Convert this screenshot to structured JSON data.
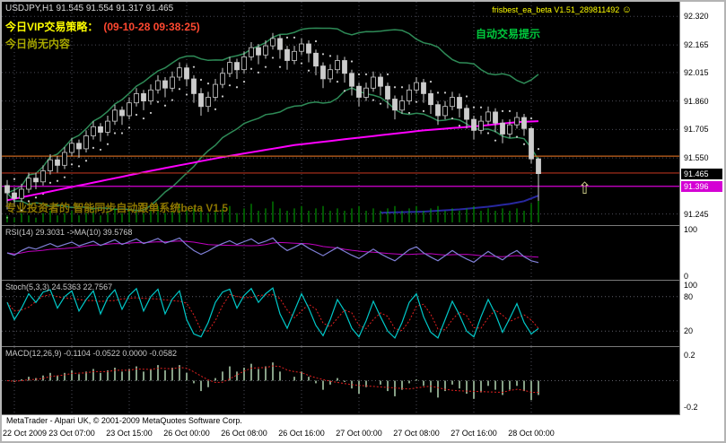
{
  "header": {
    "quote_line": "USDJPY,H1 91.545 91.554 91.317 91.465",
    "ea_label": "frisbest_ea_beta V1.51_289811492",
    "smiley": "☺",
    "vip_label": "今日VIP交易策略：",
    "vip_time": "(09-10-28 09:38:25)",
    "vip_content": "今日尚无内容",
    "auto_trade_hint": "自动交易提示",
    "watermark": "专业投资者的 智能同步自动跟单系统beta V1.5",
    "arrow": "⇧"
  },
  "footer": "MetaTrader - Alpari UK, © 2001-2009 MetaQuotes Software Corp.",
  "colors": {
    "background": "#000000",
    "grid": "#4b4b57",
    "candle_outline": "#cccccc",
    "bollinger": "#2e8b57",
    "magenta_ma": "#ff00ff",
    "blue_line": "#2828a0",
    "volume": "#00b000",
    "rsi_line": "#8080d8",
    "rsi_ma": "#c000c0",
    "stoch_k": "#00c8c8",
    "stoch_d": "#e02020",
    "macd_hist": "#86a086",
    "macd_signal": "#e02020",
    "orange_line": "#c8641e",
    "red_line": "#b4321e",
    "magenta_tag": "#d400d4"
  },
  "chart_data": {
    "type": "candlestick",
    "symbol": "USDJPY",
    "timeframe": "H1",
    "quote": {
      "open": "91.545",
      "high": "91.554",
      "low": "91.317",
      "close": "91.465"
    },
    "y_axis": [
      92.32,
      92.165,
      92.015,
      91.86,
      91.705,
      91.55,
      91.245
    ],
    "price_tags": [
      {
        "label": "91.465",
        "price": 91.465,
        "bg": "#000000",
        "fg": "#ffffff",
        "name": "current-price-tag"
      },
      {
        "label": "91.396",
        "price": 91.396,
        "bg": "#d400d4",
        "fg": "#ffffff",
        "name": "signal-price-tag"
      }
    ],
    "hlines": [
      {
        "price": 91.56,
        "color": "#c8641e"
      },
      {
        "price": 91.468,
        "color": "#b4321e"
      },
      {
        "price": 91.396,
        "color": "#d400d4"
      }
    ],
    "time_ticks": [
      {
        "idx": 1,
        "label": "22 Oct 2009"
      },
      {
        "idx": 9,
        "label": "23 Oct 07:00"
      },
      {
        "idx": 17,
        "label": "23 Oct 15:00"
      },
      {
        "idx": 25,
        "label": "26 Oct 00:00"
      },
      {
        "idx": 33,
        "label": "26 Oct 08:00"
      },
      {
        "idx": 41,
        "label": "26 Oct 16:00"
      },
      {
        "idx": 49,
        "label": "27 Oct 00:00"
      },
      {
        "idx": 57,
        "label": "27 Oct 08:00"
      },
      {
        "idx": 65,
        "label": "27 Oct 16:00"
      },
      {
        "idx": 73,
        "label": "28 Oct 00:00"
      }
    ],
    "candles": [
      [
        91.4,
        91.43,
        91.27,
        91.36
      ],
      [
        91.36,
        91.39,
        91.29,
        91.33
      ],
      [
        91.33,
        91.41,
        91.31,
        91.38
      ],
      [
        91.38,
        91.47,
        91.36,
        91.44
      ],
      [
        91.44,
        91.47,
        91.38,
        91.42
      ],
      [
        91.42,
        91.51,
        91.4,
        91.48
      ],
      [
        91.48,
        91.57,
        91.46,
        91.54
      ],
      [
        91.54,
        91.56,
        91.47,
        91.51
      ],
      [
        91.51,
        91.61,
        91.49,
        91.58
      ],
      [
        91.58,
        91.66,
        91.56,
        91.63
      ],
      [
        91.63,
        91.65,
        91.55,
        91.6
      ],
      [
        91.6,
        91.7,
        91.58,
        91.67
      ],
      [
        91.67,
        91.75,
        91.65,
        91.72
      ],
      [
        91.72,
        91.74,
        91.64,
        91.69
      ],
      [
        91.69,
        91.78,
        91.67,
        91.75
      ],
      [
        91.75,
        91.84,
        91.73,
        91.81
      ],
      [
        91.81,
        91.83,
        91.73,
        91.78
      ],
      [
        91.78,
        91.88,
        91.76,
        91.85
      ],
      [
        91.85,
        91.93,
        91.83,
        91.9
      ],
      [
        91.9,
        91.92,
        91.81,
        91.86
      ],
      [
        91.86,
        91.95,
        91.84,
        91.92
      ],
      [
        91.92,
        92.0,
        91.9,
        91.97
      ],
      [
        91.97,
        91.99,
        91.88,
        91.93
      ],
      [
        91.93,
        92.02,
        91.91,
        91.99
      ],
      [
        91.99,
        92.07,
        91.97,
        92.04
      ],
      [
        92.04,
        92.06,
        91.94,
        91.98
      ],
      [
        91.98,
        92.0,
        91.85,
        91.9
      ],
      [
        91.9,
        91.93,
        91.78,
        91.83
      ],
      [
        91.83,
        91.91,
        91.8,
        91.88
      ],
      [
        91.88,
        91.98,
        91.86,
        91.95
      ],
      [
        91.95,
        92.04,
        91.93,
        92.01
      ],
      [
        92.01,
        92.1,
        91.99,
        92.07
      ],
      [
        92.07,
        92.09,
        91.98,
        92.03
      ],
      [
        92.03,
        92.13,
        92.01,
        92.1
      ],
      [
        92.1,
        92.18,
        92.08,
        92.15
      ],
      [
        92.15,
        92.17,
        92.06,
        92.11
      ],
      [
        92.11,
        92.19,
        92.09,
        92.16
      ],
      [
        92.16,
        92.23,
        92.14,
        92.2
      ],
      [
        92.2,
        92.22,
        92.09,
        92.14
      ],
      [
        92.14,
        92.16,
        92.03,
        92.08
      ],
      [
        92.08,
        92.16,
        92.06,
        92.13
      ],
      [
        92.13,
        92.2,
        92.11,
        92.17
      ],
      [
        92.17,
        92.19,
        92.07,
        92.12
      ],
      [
        92.12,
        92.14,
        92.0,
        92.05
      ],
      [
        92.05,
        92.07,
        91.93,
        91.98
      ],
      [
        91.98,
        92.06,
        91.96,
        92.03
      ],
      [
        92.03,
        92.11,
        92.01,
        92.08
      ],
      [
        92.08,
        92.1,
        91.96,
        92.01
      ],
      [
        92.01,
        92.03,
        91.89,
        91.94
      ],
      [
        91.94,
        91.96,
        91.83,
        91.88
      ],
      [
        91.88,
        91.96,
        91.86,
        91.93
      ],
      [
        91.93,
        92.02,
        91.91,
        91.99
      ],
      [
        91.99,
        92.01,
        91.89,
        91.94
      ],
      [
        91.94,
        91.96,
        91.82,
        91.87
      ],
      [
        91.87,
        91.89,
        91.76,
        91.81
      ],
      [
        91.81,
        91.89,
        91.79,
        91.86
      ],
      [
        91.86,
        91.95,
        91.84,
        91.92
      ],
      [
        91.92,
        91.99,
        91.9,
        91.96
      ],
      [
        91.96,
        91.98,
        91.85,
        91.9
      ],
      [
        91.9,
        91.92,
        91.79,
        91.84
      ],
      [
        91.84,
        91.86,
        91.73,
        91.78
      ],
      [
        91.78,
        91.86,
        91.76,
        91.83
      ],
      [
        91.83,
        91.91,
        91.81,
        91.88
      ],
      [
        91.88,
        91.9,
        91.77,
        91.82
      ],
      [
        91.82,
        91.84,
        91.71,
        91.76
      ],
      [
        91.76,
        91.78,
        91.65,
        91.7
      ],
      [
        91.7,
        91.78,
        91.68,
        91.75
      ],
      [
        91.75,
        91.83,
        91.73,
        91.8
      ],
      [
        91.8,
        91.82,
        91.69,
        91.74
      ],
      [
        91.74,
        91.76,
        91.63,
        91.68
      ],
      [
        91.68,
        91.76,
        91.66,
        91.73
      ],
      [
        91.73,
        91.8,
        91.71,
        91.77
      ],
      [
        91.77,
        91.79,
        91.67,
        91.71
      ],
      [
        91.71,
        91.72,
        91.52,
        91.545
      ],
      [
        91.545,
        91.554,
        91.317,
        91.465
      ]
    ],
    "volumes": [
      3,
      2,
      4,
      3,
      2,
      4,
      5,
      3,
      4,
      5,
      3,
      4,
      6,
      3,
      5,
      6,
      4,
      5,
      7,
      4,
      5,
      7,
      4,
      5,
      8,
      5,
      6,
      7,
      4,
      5,
      6,
      7,
      4,
      6,
      8,
      5,
      6,
      9,
      6,
      5,
      6,
      7,
      5,
      6,
      7,
      5,
      6,
      5,
      6,
      7,
      5,
      6,
      5,
      6,
      7,
      5,
      6,
      7,
      5,
      6,
      7,
      5,
      6,
      5,
      6,
      7,
      5,
      6,
      5,
      6,
      5,
      6,
      5,
      8,
      10
    ],
    "overlays": {
      "magenta_ma": [
        [
          0,
          91.32
        ],
        [
          10,
          91.4
        ],
        [
          20,
          91.48
        ],
        [
          30,
          91.555
        ],
        [
          40,
          91.62
        ],
        [
          50,
          91.665
        ],
        [
          58,
          91.7
        ],
        [
          66,
          91.725
        ],
        [
          71,
          91.745
        ],
        [
          74,
          91.75
        ]
      ],
      "blue_line": [
        [
          52,
          91.252
        ],
        [
          58,
          91.258
        ],
        [
          63,
          91.27
        ],
        [
          67,
          91.285
        ],
        [
          70,
          91.3
        ],
        [
          72,
          91.315
        ],
        [
          74,
          91.345
        ]
      ]
    },
    "rsi": {
      "label": "RSI(14) 29.3031 ->MA(10) 39.5768",
      "axis": [
        {
          "v": 100,
          "label": "100"
        },
        {
          "v": 0,
          "label": "0"
        }
      ],
      "values": [
        50,
        45,
        55,
        62,
        58,
        64,
        70,
        63,
        68,
        73,
        65,
        70,
        75,
        66,
        72,
        78,
        68,
        74,
        80,
        70,
        75,
        81,
        71,
        76,
        82,
        67,
        55,
        47,
        54,
        63,
        70,
        76,
        68,
        74,
        80,
        70,
        75,
        82,
        66,
        55,
        62,
        70,
        60,
        52,
        44,
        53,
        62,
        53,
        45,
        38,
        48,
        58,
        48,
        40,
        33,
        45,
        57,
        63,
        50,
        41,
        33,
        44,
        55,
        45,
        37,
        30,
        42,
        53,
        43,
        35,
        47,
        55,
        42,
        33,
        29.3
      ]
    },
    "stoch": {
      "label": "Stoch(5,3,3) 24.5363 22.7567",
      "axis": [
        {
          "v": 100,
          "label": "100"
        },
        {
          "v": 80,
          "label": "80"
        },
        {
          "v": 20,
          "label": "20"
        }
      ],
      "levels": [
        80,
        20
      ],
      "k": [
        70,
        40,
        60,
        85,
        70,
        88,
        92,
        60,
        80,
        90,
        55,
        75,
        90,
        50,
        78,
        92,
        58,
        82,
        94,
        55,
        80,
        93,
        50,
        76,
        90,
        40,
        15,
        10,
        35,
        70,
        88,
        93,
        60,
        82,
        94,
        70,
        85,
        95,
        50,
        25,
        55,
        85,
        60,
        30,
        12,
        40,
        75,
        55,
        25,
        10,
        38,
        72,
        45,
        20,
        8,
        35,
        70,
        85,
        45,
        18,
        8,
        40,
        72,
        48,
        20,
        10,
        45,
        75,
        50,
        18,
        42,
        68,
        35,
        15,
        24.5
      ]
    },
    "macd": {
      "label": "MACD(12,26,9) -0.1104 -0.0522 0.0000 -0.0582",
      "axis": [
        {
          "v": 0.2,
          "label": "0.2"
        },
        {
          "v": -0.2,
          "label": "-0.2"
        }
      ],
      "hist": [
        0.0,
        -0.01,
        0.01,
        0.03,
        0.02,
        0.04,
        0.06,
        0.04,
        0.06,
        0.08,
        0.05,
        0.07,
        0.09,
        0.06,
        0.08,
        0.1,
        0.07,
        0.09,
        0.11,
        0.07,
        0.09,
        0.12,
        0.08,
        0.1,
        0.12,
        0.06,
        -0.02,
        -0.08,
        -0.05,
        0.02,
        0.07,
        0.11,
        0.07,
        0.1,
        0.13,
        0.09,
        0.11,
        0.14,
        0.07,
        0.0,
        0.03,
        0.07,
        0.03,
        -0.02,
        -0.07,
        -0.03,
        0.02,
        -0.01,
        -0.06,
        -0.1,
        -0.05,
        0.0,
        -0.03,
        -0.08,
        -0.12,
        -0.07,
        -0.02,
        0.01,
        -0.04,
        -0.09,
        -0.13,
        -0.08,
        -0.03,
        -0.06,
        -0.1,
        -0.14,
        -0.09,
        -0.04,
        -0.07,
        -0.11,
        -0.07,
        -0.04,
        -0.08,
        -0.15,
        -0.11
      ]
    }
  }
}
